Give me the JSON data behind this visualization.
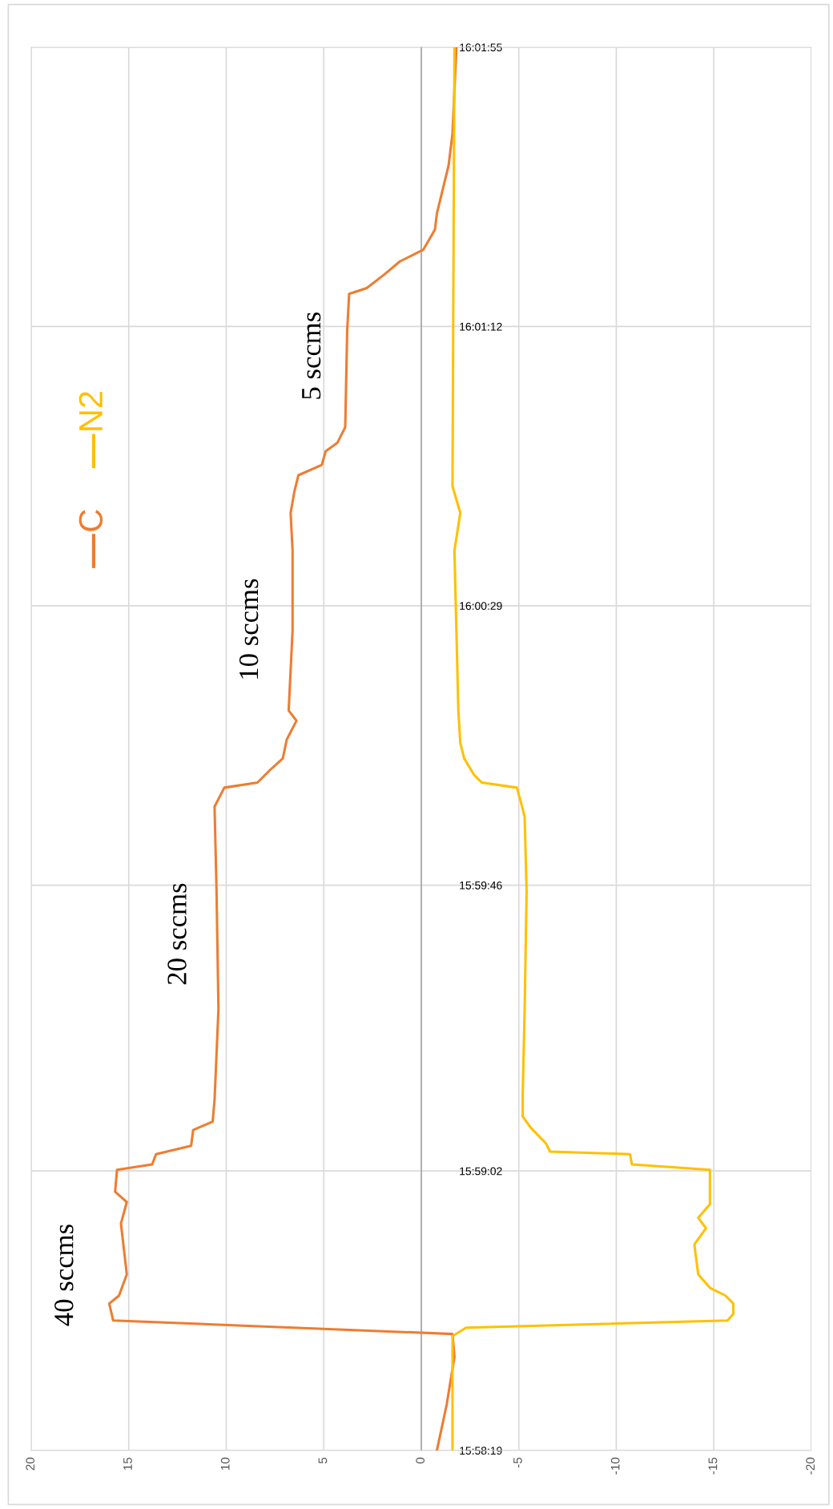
{
  "chart_data": {
    "type": "line",
    "series": [
      {
        "name": "C",
        "color": "#ed7d31",
        "values": [
          15.97194,
          15.97389,
          15.97594,
          15.97692,
          15.9775,
          15.97822,
          15.97856,
          15.97947,
          15.98164,
          15.98256,
          15.983,
          15.98394,
          15.98417,
          15.98461,
          15.98497,
          15.98564,
          15.986,
          15.98692,
          15.99081,
          15.99594,
          15.99947,
          16.00028,
          16.0005,
          16.00108,
          16.00153,
          16.00233,
          16.00314,
          16.00358,
          16.007,
          16.01042,
          16.01203,
          16.01297,
          16.01364,
          16.01408,
          16.01467,
          16.01503,
          16.01569,
          16.01981,
          16.02139,
          16.02164,
          16.02222,
          16.02278,
          16.02328,
          16.02414,
          16.02483,
          16.02689,
          16.02825,
          16.03194
        ],
        "x": [
          -0.8,
          -1.3,
          -1.7,
          -1.6,
          15.8,
          16.0,
          15.5,
          15.1,
          15.4,
          15.1,
          15.7,
          15.6,
          13.8,
          13.6,
          11.8,
          11.7,
          10.7,
          10.6,
          10.4,
          10.5,
          10.6,
          10.1,
          8.4,
          7.7,
          7.1,
          6.9,
          6.4,
          6.8,
          6.6,
          6.6,
          6.7,
          6.5,
          6.3,
          5.1,
          4.9,
          4.3,
          3.9,
          3.8,
          3.7,
          2.8,
          1.9,
          1.1,
          -0.1,
          -0.7,
          -0.8,
          -1.4,
          -1.6,
          -1.8
        ]
      },
      {
        "name": "N2",
        "color": "#ffc000",
        "values": [
          15.97194,
          15.97683,
          15.97719,
          15.9775,
          15.97778,
          15.97822,
          15.97856,
          15.97889,
          15.97947,
          15.98075,
          15.98144,
          15.98189,
          15.98247,
          15.98394,
          15.98417,
          15.98461,
          15.98472,
          15.98506,
          15.98575,
          15.98622,
          15.98714,
          15.99081,
          15.99583,
          15.99903,
          15.99969,
          16.00028,
          16.0005,
          16.00083,
          16.00153,
          16.00219,
          16.00358,
          16.01042,
          16.01203,
          16.01317,
          16.03194
        ],
        "x": [
          -1.6,
          -1.6,
          -2.3,
          -15.7,
          -16.0,
          -16.0,
          -15.6,
          -14.8,
          -14.2,
          -14.0,
          -14.6,
          -14.2,
          -14.8,
          -14.8,
          -10.8,
          -10.7,
          -6.6,
          -6.4,
          -5.6,
          -5.2,
          -5.2,
          -5.3,
          -5.4,
          -5.3,
          -5.1,
          -4.9,
          -3.1,
          -2.7,
          -2.2,
          -2.0,
          -1.9,
          -1.7,
          -2.0,
          -1.6,
          -1.7
        ]
      }
    ],
    "ylim": [
      15.97194,
      16.03194
    ],
    "yticks": [
      {
        "value": 15.97194,
        "label": "15:58:19"
      },
      {
        "value": 15.98389,
        "label": "15:59:02"
      },
      {
        "value": 15.99611,
        "label": "15:59:46"
      },
      {
        "value": 16.00806,
        "label": "16:00:29"
      },
      {
        "value": 16.02,
        "label": "16:01:12"
      },
      {
        "value": 16.03194,
        "label": "16:01:55"
      }
    ],
    "xlim": [
      20,
      -20
    ],
    "xticks": [
      20,
      15,
      10,
      5,
      0,
      -5,
      -10,
      -15,
      -20
    ],
    "grid": true,
    "legend": "top left",
    "annotations": [
      "40 sccms",
      "20 sccms",
      "10 sccms",
      "5 sccms"
    ]
  }
}
